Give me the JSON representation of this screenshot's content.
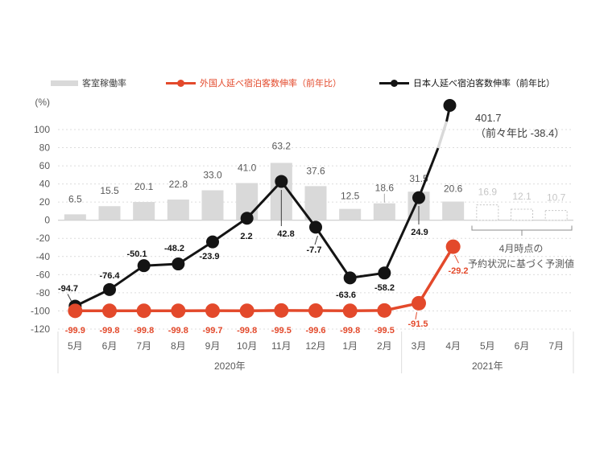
{
  "unit_label": "(%)",
  "legend": {
    "items": [
      {
        "label": "客室稼働率",
        "type": "bar",
        "color": "#d9d9d9",
        "text_color": "#404040"
      },
      {
        "label": "外国人延べ宿泊客数伸率（前年比）",
        "type": "line",
        "color": "#e3492b",
        "text_color": "#e3492b"
      },
      {
        "label": "日本人延べ宿泊客数伸率（前年比）",
        "type": "line",
        "color": "#141414",
        "text_color": "#141414"
      }
    ]
  },
  "chart_data": {
    "type": "combo",
    "title": "",
    "unit": "(%)",
    "categories": [
      "5月",
      "6月",
      "7月",
      "8月",
      "9月",
      "10月",
      "11月",
      "12月",
      "1月",
      "2月",
      "3月",
      "4月",
      "5月",
      "6月",
      "7月"
    ],
    "year_groups": [
      {
        "label": "2020年",
        "count": 10
      },
      {
        "label": "2021年",
        "count": 5
      }
    ],
    "ylim": [
      -120,
      100
    ],
    "ytick_step": 20,
    "grid": true,
    "legend_position": "top",
    "series": [
      {
        "name": "客室稼働率",
        "type": "bar",
        "color": "#d9d9d9",
        "values": [
          6.5,
          15.5,
          20.1,
          22.8,
          33.0,
          41.0,
          63.2,
          37.6,
          12.5,
          18.6,
          31.5,
          20.6,
          16.9,
          12.1,
          10.7
        ],
        "forecast_from_index": 12
      },
      {
        "name": "外国人延べ宿泊客数伸率（前年比）",
        "type": "line",
        "color": "#e3492b",
        "values": [
          -99.9,
          -99.8,
          -99.8,
          -99.8,
          -99.7,
          -99.8,
          -99.5,
          -99.6,
          -99.8,
          -99.5,
          -91.5,
          -29.2,
          null,
          null,
          null
        ]
      },
      {
        "name": "日本人延べ宿泊客数伸率（前年比）",
        "type": "line",
        "color": "#141414",
        "values": [
          -94.7,
          -76.4,
          -50.1,
          -48.2,
          -23.9,
          2.2,
          42.8,
          -7.7,
          -63.6,
          -58.2,
          24.9,
          401.7,
          null,
          null,
          null
        ],
        "offscale_last_value": 401.7
      }
    ],
    "annotations": {
      "peak_value": "401.7",
      "peak_note": "（前々年比 -38.4）",
      "forecast_line1": "4月時点の",
      "forecast_line2": "予約状況に基づく予測値"
    }
  },
  "colors": {
    "background": "#ffffff",
    "bar": "#d9d9d9",
    "bar_label": "#595959",
    "forecast_bar_border": "#c4c4c4",
    "forecast_bar_label": "#c6c6c6",
    "red_line": "#e3492b",
    "black_line": "#141414",
    "grid": "#dcdcdc",
    "zero_line": "#c3c3c3",
    "axis_text": "#595959",
    "broken_segment": "#d9d9d9",
    "bracket": "#8c8c8c"
  }
}
